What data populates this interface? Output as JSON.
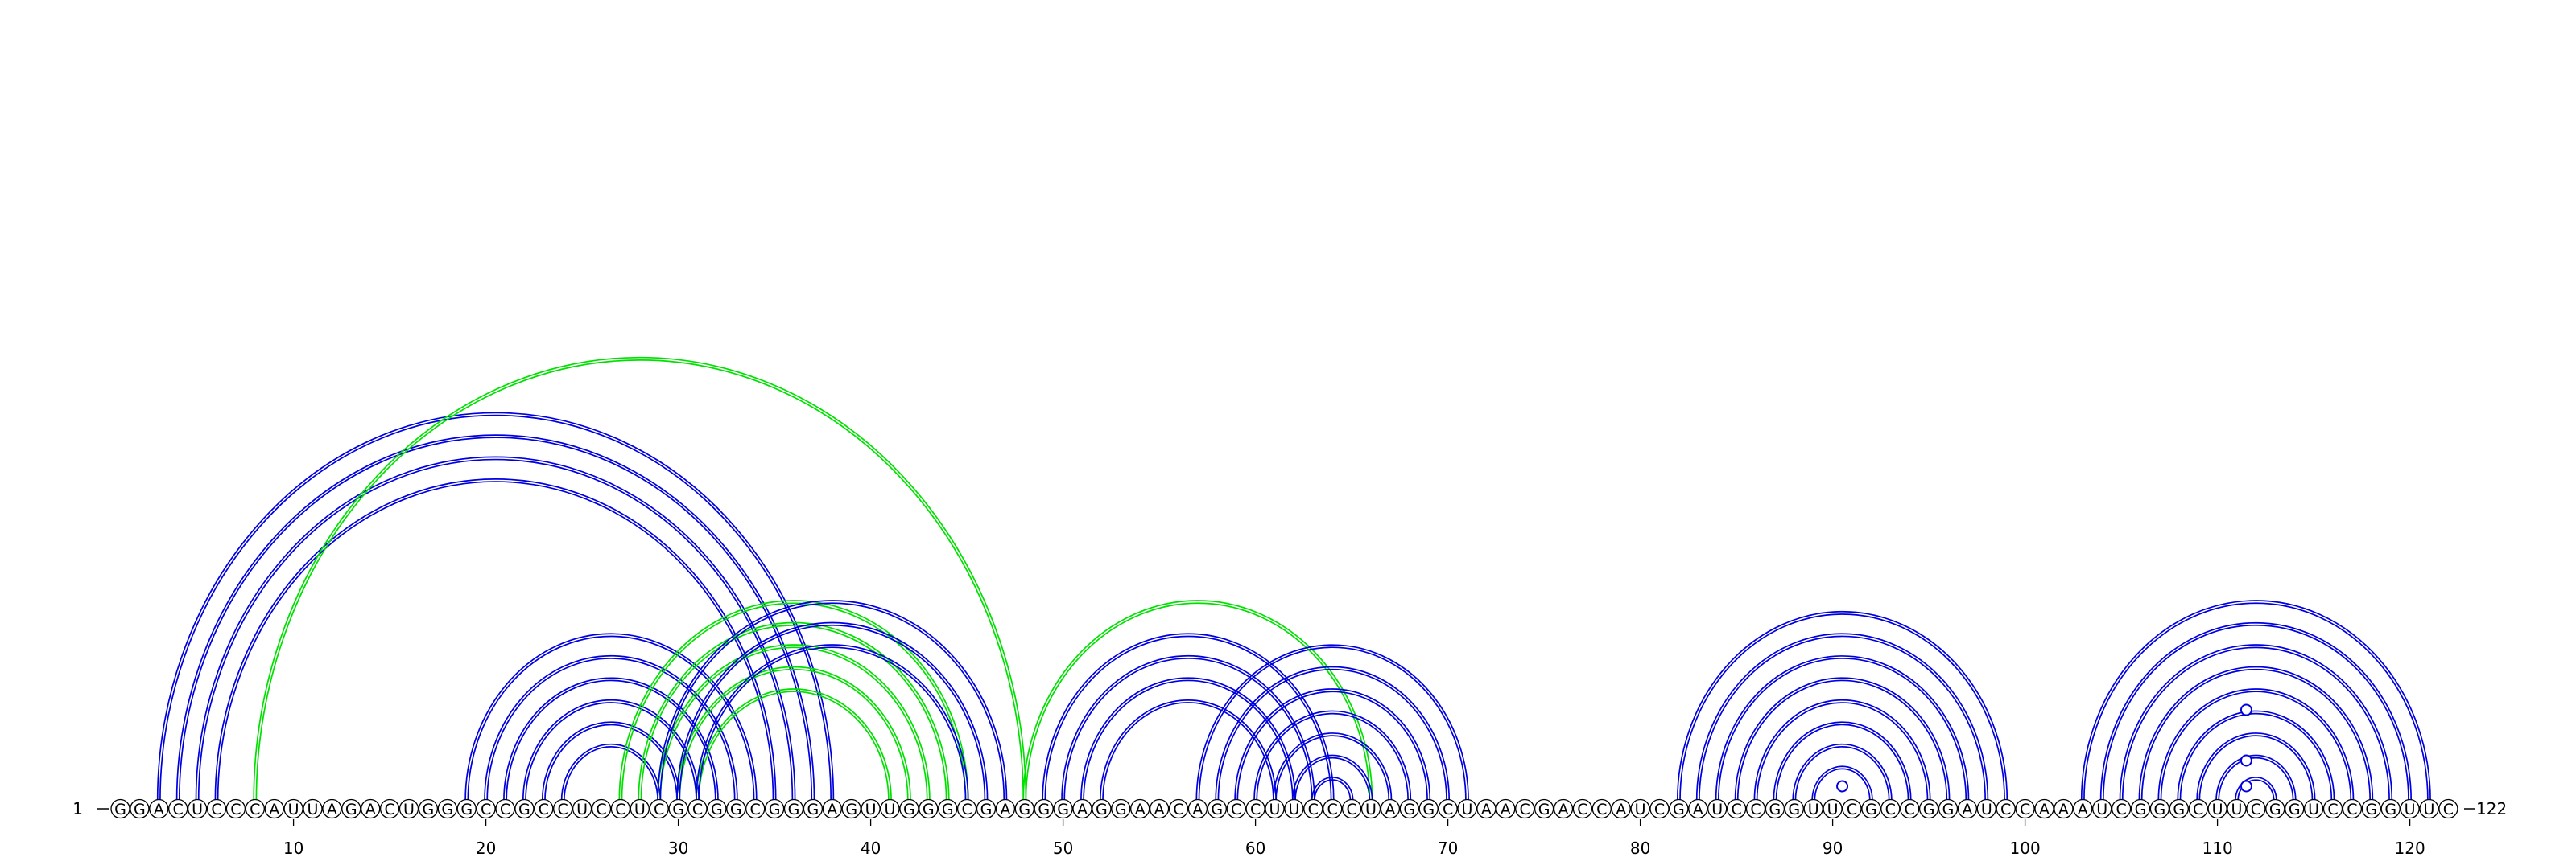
{
  "sequence": "GGACUCCCAUUAGACUGGGCCGCCUCCUCGCGGCGGGAGUUGGGCGAGGGAGGAACAGCCUUCCCUAGGCUAACGACCAUCGAUCCGGUUCGCCGGAUCCAAAUCGGGCUUCGGUCCGGUUC",
  "start_label": "1",
  "end_label": "122",
  "ticks": [
    "10",
    "20",
    "30",
    "40",
    "50",
    "60",
    "70",
    "80",
    "90",
    "100",
    "110",
    "120"
  ],
  "colors": {
    "primary_arcs": "#0000dd",
    "alternate_arcs": "#00e000",
    "markers": "#0000dd"
  },
  "arcs": [
    {
      "i": 3,
      "j": 38,
      "color": "blue"
    },
    {
      "i": 4,
      "j": 37,
      "color": "blue"
    },
    {
      "i": 5,
      "j": 36,
      "color": "blue"
    },
    {
      "i": 6,
      "j": 35,
      "color": "blue"
    },
    {
      "i": 8,
      "j": 48,
      "color": "green"
    },
    {
      "i": 19,
      "j": 34,
      "color": "blue"
    },
    {
      "i": 20,
      "j": 33,
      "color": "blue"
    },
    {
      "i": 21,
      "j": 32,
      "color": "blue"
    },
    {
      "i": 22,
      "j": 31,
      "color": "blue"
    },
    {
      "i": 23,
      "j": 30,
      "color": "blue"
    },
    {
      "i": 24,
      "j": 29,
      "color": "blue"
    },
    {
      "i": 27,
      "j": 45,
      "color": "green"
    },
    {
      "i": 28,
      "j": 44,
      "color": "green"
    },
    {
      "i": 29,
      "j": 43,
      "color": "green"
    },
    {
      "i": 30,
      "j": 42,
      "color": "green"
    },
    {
      "i": 31,
      "j": 41,
      "color": "green"
    },
    {
      "i": 29,
      "j": 47,
      "color": "blue"
    },
    {
      "i": 30,
      "j": 46,
      "color": "blue"
    },
    {
      "i": 31,
      "j": 45,
      "color": "blue"
    },
    {
      "i": 48,
      "j": 66,
      "color": "green"
    },
    {
      "i": 49,
      "j": 64,
      "color": "blue"
    },
    {
      "i": 50,
      "j": 63,
      "color": "blue"
    },
    {
      "i": 51,
      "j": 62,
      "color": "blue"
    },
    {
      "i": 52,
      "j": 61,
      "color": "blue"
    },
    {
      "i": 57,
      "j": 71,
      "color": "blue"
    },
    {
      "i": 58,
      "j": 70,
      "color": "blue"
    },
    {
      "i": 59,
      "j": 69,
      "color": "blue"
    },
    {
      "i": 60,
      "j": 68,
      "color": "blue"
    },
    {
      "i": 61,
      "j": 67,
      "color": "blue"
    },
    {
      "i": 62,
      "j": 66,
      "color": "blue"
    },
    {
      "i": 63,
      "j": 65,
      "color": "blue"
    },
    {
      "i": 82,
      "j": 99,
      "color": "blue"
    },
    {
      "i": 83,
      "j": 98,
      "color": "blue"
    },
    {
      "i": 84,
      "j": 97,
      "color": "blue"
    },
    {
      "i": 85,
      "j": 96,
      "color": "blue"
    },
    {
      "i": 86,
      "j": 95,
      "color": "blue"
    },
    {
      "i": 87,
      "j": 94,
      "color": "blue"
    },
    {
      "i": 88,
      "j": 93,
      "color": "blue"
    },
    {
      "i": 89,
      "j": 92,
      "color": "blue"
    },
    {
      "i": 103,
      "j": 121,
      "color": "blue"
    },
    {
      "i": 104,
      "j": 120,
      "color": "blue"
    },
    {
      "i": 105,
      "j": 119,
      "color": "blue"
    },
    {
      "i": 106,
      "j": 118,
      "color": "blue"
    },
    {
      "i": 107,
      "j": 117,
      "color": "blue"
    },
    {
      "i": 108,
      "j": 116,
      "color": "blue"
    },
    {
      "i": 109,
      "j": 115,
      "color": "blue"
    },
    {
      "i": 110,
      "j": 114,
      "color": "blue"
    },
    {
      "i": 111,
      "j": 113,
      "color": "blue"
    }
  ],
  "markers": [
    90.5,
    111.5,
    111.5,
    111.5
  ]
}
